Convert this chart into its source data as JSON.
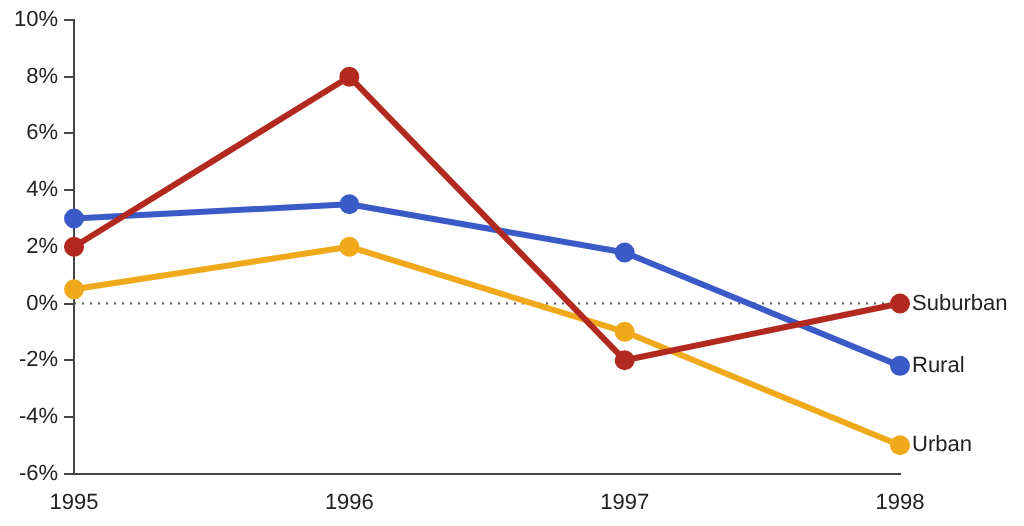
{
  "chart_data": {
    "type": "line",
    "categories": [
      "1995",
      "1996",
      "1997",
      "1998"
    ],
    "series": [
      {
        "name": "Suburban",
        "color": "#b22a1f",
        "values": [
          2,
          8,
          -2,
          0
        ]
      },
      {
        "name": "Rural",
        "color": "#3a5bc7",
        "values": [
          3,
          3.5,
          1.8,
          -2.2
        ]
      },
      {
        "name": "Urban",
        "color": "#f0a91b",
        "values": [
          0.5,
          2,
          -1,
          -5
        ]
      }
    ],
    "ylim": [
      -6,
      10
    ],
    "yticks": [
      {
        "value": -6,
        "label": "-6%"
      },
      {
        "value": -4,
        "label": "-4%"
      },
      {
        "value": -2,
        "label": "-2%"
      },
      {
        "value": 0,
        "label": "0%"
      },
      {
        "value": 2,
        "label": "2%"
      },
      {
        "value": 4,
        "label": "4%"
      },
      {
        "value": 6,
        "label": "6%"
      },
      {
        "value": 8,
        "label": "8%"
      },
      {
        "value": 10,
        "label": "10%"
      }
    ],
    "ref_lines": [
      {
        "axis": "y",
        "value": 0,
        "color": "#555555",
        "line_style": "dotted"
      }
    ],
    "grid": false,
    "legend": false,
    "marker": "circle",
    "line_style": "solid"
  }
}
